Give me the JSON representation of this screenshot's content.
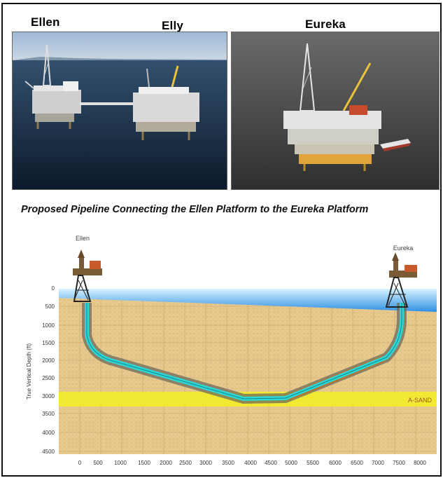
{
  "photo_labels": {
    "ellen": "Ellen",
    "elly": "Elly",
    "eureka": "Eureka"
  },
  "diagram": {
    "title": "Proposed Pipeline Connecting the Ellen Platform to the Eureka Platform",
    "left_platform": "Ellen",
    "right_platform": "Eureka",
    "y_axis_label": "True Vertical Depth (ft)",
    "y_ticks": [
      "0",
      "500",
      "1000",
      "1500",
      "2000",
      "2500",
      "3000",
      "3500",
      "4000",
      "4500"
    ],
    "x_ticks": [
      "0",
      "500",
      "1000",
      "1500",
      "2000",
      "2500",
      "3000",
      "3500",
      "4000",
      "4500",
      "5000",
      "5500",
      "6000",
      "6500",
      "7000",
      "7500",
      "8000"
    ],
    "sand_label": "A-SAND"
  },
  "colors": {
    "sea": "#3aa0e6",
    "sediment": "#e7c98e",
    "sand_layer": "#f2ec2a",
    "pipe": "#2ad8d8"
  }
}
